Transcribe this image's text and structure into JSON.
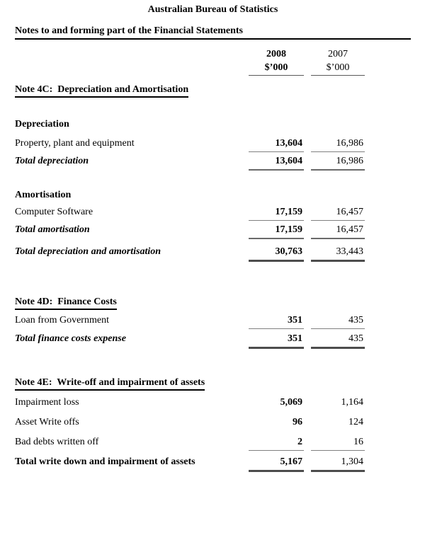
{
  "header": {
    "org_title": "Australian Bureau of Statistics",
    "doc_title": "Notes to and forming part of the Financial Statements"
  },
  "columns": {
    "col1_year": "2008",
    "col1_unit": "$’000",
    "col2_year": "2007",
    "col2_unit": "$’000"
  },
  "note4c": {
    "heading": "Note 4C:  Depreciation and Amortisation",
    "depreciation": {
      "heading": "Depreciation",
      "rows": [
        {
          "label": "Property, plant and equipment",
          "v2008": "13,604",
          "v2007": "16,986"
        }
      ],
      "total": {
        "label": "Total depreciation",
        "v2008": "13,604",
        "v2007": "16,986"
      }
    },
    "amortisation": {
      "heading": "Amortisation",
      "rows": [
        {
          "label": "Computer Software",
          "v2008": "17,159",
          "v2007": "16,457"
        }
      ],
      "total": {
        "label": "Total amortisation",
        "v2008": "17,159",
        "v2007": "16,457"
      }
    },
    "grand_total": {
      "label": "Total depreciation and amortisation",
      "v2008": "30,763",
      "v2007": "33,443"
    }
  },
  "note4d": {
    "heading": "Note 4D:  Finance Costs",
    "rows": [
      {
        "label": "Loan from Government",
        "v2008": "351",
        "v2007": "435"
      }
    ],
    "total": {
      "label": "Total finance costs expense",
      "v2008": "351",
      "v2007": "435"
    }
  },
  "note4e": {
    "heading": "Note 4E:  Write-off and impairment of assets",
    "rows": [
      {
        "label": "Impairment loss",
        "v2008": "5,069",
        "v2007": "1,164"
      },
      {
        "label": "Asset Write offs",
        "v2008": "96",
        "v2007": "124"
      },
      {
        "label": "Bad debts written off",
        "v2008": "2",
        "v2007": "16"
      }
    ],
    "total": {
      "label": "Total write down and impairment of assets",
      "v2008": "5,167",
      "v2007": "1,304"
    }
  },
  "colors": {
    "text": "#000000",
    "rule_heading": "#000000",
    "rule_thin": "#808080",
    "rule_medium": "#6a6a6a",
    "rule_heavy": "#4d4d4d"
  }
}
